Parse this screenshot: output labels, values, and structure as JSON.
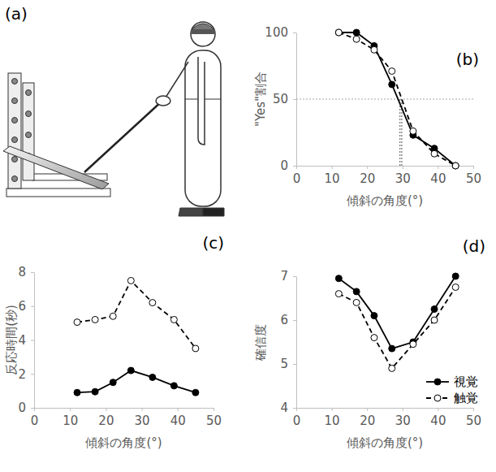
{
  "illustration": {
    "panel_label": "(a)"
  },
  "chart_data": [
    {
      "type": "line",
      "panel_label": "(b)",
      "x_label": "傾斜の角度(°)",
      "y_label": "\"Yes\"割合",
      "xlim": [
        0,
        50
      ],
      "xticks": [
        0,
        10,
        20,
        30,
        40,
        50
      ],
      "ylim": [
        0,
        100
      ],
      "yticks": [
        0,
        50,
        100
      ],
      "hline": 50,
      "vlines": [
        29.3,
        29.8
      ],
      "x": [
        12,
        17,
        22,
        27,
        33,
        39,
        45
      ],
      "series": [
        {
          "color": "#000000",
          "marker": "filled",
          "line_style": "solid",
          "values": [
            100,
            100,
            90,
            61,
            23,
            13,
            0
          ]
        },
        {
          "color": "#000000",
          "marker": "open",
          "line_style": "dashed",
          "values": [
            100,
            95,
            87,
            71,
            26,
            9,
            0
          ]
        }
      ]
    },
    {
      "type": "line",
      "panel_label": "(c)",
      "x_label": "傾斜の角度(°)",
      "y_label": "反応時間(秒)",
      "xlim": [
        0,
        50
      ],
      "xticks": [
        0,
        10,
        20,
        30,
        40,
        50
      ],
      "ylim": [
        0,
        8
      ],
      "yticks": [
        0,
        2,
        4,
        6,
        8
      ],
      "x": [
        12,
        17,
        22,
        27,
        33,
        39,
        45
      ],
      "series": [
        {
          "color": "#000000",
          "marker": "filled",
          "line_style": "solid",
          "values": [
            0.9,
            0.95,
            1.5,
            2.2,
            1.8,
            1.3,
            0.9
          ]
        },
        {
          "color": "#000000",
          "marker": "open",
          "line_style": "dashed",
          "values": [
            5.05,
            5.2,
            5.4,
            7.5,
            6.2,
            5.2,
            3.5
          ]
        }
      ]
    },
    {
      "type": "line",
      "panel_label": "(d)",
      "x_label": "傾斜の角度(°)",
      "y_label": "確信度",
      "xlim": [
        0,
        50
      ],
      "xticks": [
        0,
        10,
        20,
        30,
        40,
        50
      ],
      "ylim": [
        4,
        7
      ],
      "yticks": [
        4,
        5,
        6,
        7
      ],
      "legend": "lower right",
      "x": [
        12,
        17,
        22,
        27,
        33,
        39,
        45
      ],
      "series": [
        {
          "name": "視覚",
          "color": "#000000",
          "marker": "filled",
          "line_style": "solid",
          "values": [
            6.95,
            6.65,
            6.1,
            5.35,
            5.5,
            6.25,
            7.0
          ]
        },
        {
          "name": "触覚",
          "color": "#000000",
          "marker": "open",
          "line_style": "dashed",
          "values": [
            6.6,
            6.4,
            5.6,
            4.9,
            5.45,
            6.0,
            6.75
          ]
        }
      ]
    }
  ]
}
